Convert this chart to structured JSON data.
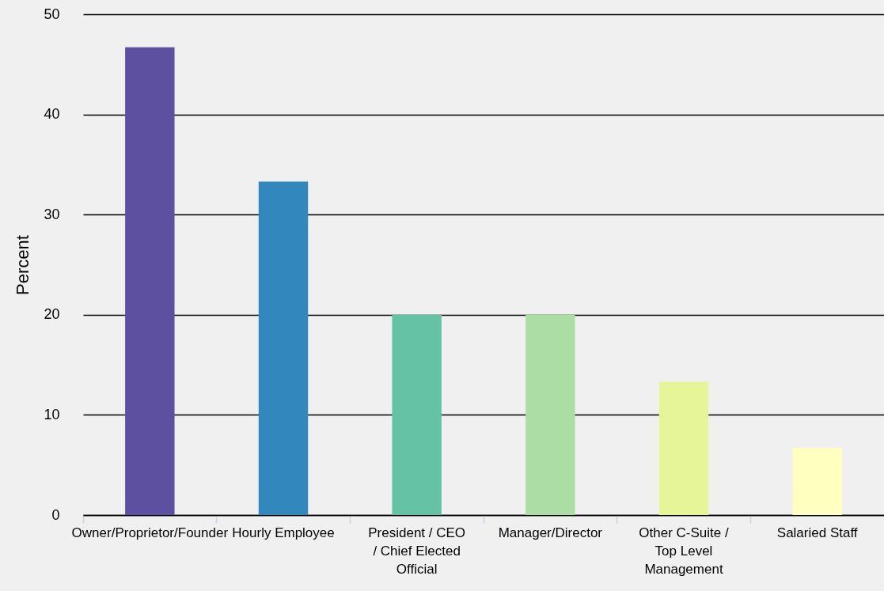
{
  "chart_data": {
    "type": "bar",
    "ylabel": "Percent",
    "categories": [
      "Owner/Proprietor/Founder",
      "Hourly Employee",
      "President / CEO / Chief Elected Official",
      "Manager/Director",
      "Other C-Suite / Top Level Management",
      "Salaried Staff"
    ],
    "values": [
      46.7,
      33.3,
      20,
      20,
      13.3,
      6.7
    ],
    "colors": [
      "#5e50a1",
      "#3288bd",
      "#66c2a5",
      "#abdda4",
      "#e6f598",
      "#ffffbf"
    ],
    "ylim": [
      0,
      50
    ],
    "yticks": [
      0,
      10,
      20,
      30,
      40,
      50
    ],
    "grid": "y"
  }
}
